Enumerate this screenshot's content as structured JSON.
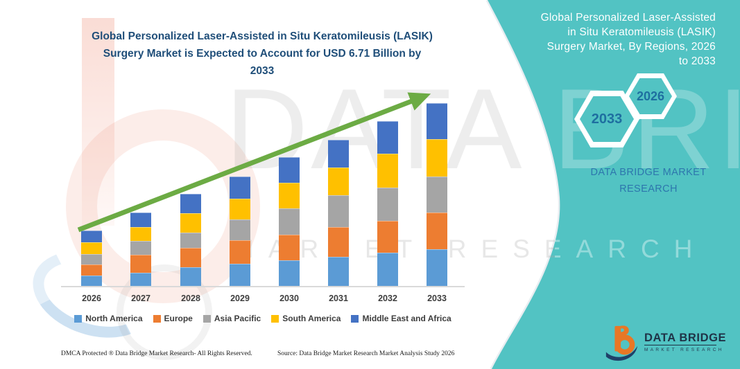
{
  "chart": {
    "title": "Global Personalized Laser-Assisted in Situ Keratomileusis (LASIK)\nSurgery Market is Expected to Account for USD 6.71 Billion by\n2033"
  },
  "chart_data": {
    "type": "bar",
    "stacked": true,
    "title": "Global Personalized Laser-Assisted in Situ Keratomileusis (LASIK) Surgery Market is Expected to Account for USD 6.71 Billion by 2033",
    "unit": "USD Billion",
    "categories": [
      "2026",
      "2027",
      "2028",
      "2029",
      "2030",
      "2031",
      "2032",
      "2033"
    ],
    "series": [
      {
        "name": "North America",
        "color": "#5B9BD5",
        "values": [
          0.41,
          0.51,
          0.71,
          0.83,
          0.96,
          1.09,
          1.24,
          1.37
        ]
      },
      {
        "name": "Europe",
        "color": "#ED7D31",
        "values": [
          0.41,
          0.65,
          0.7,
          0.86,
          0.94,
          1.09,
          1.17,
          1.34
        ]
      },
      {
        "name": "Asia Pacific",
        "color": "#A5A5A5",
        "values": [
          0.36,
          0.51,
          0.56,
          0.76,
          0.96,
          1.16,
          1.21,
          1.32
        ]
      },
      {
        "name": "South America",
        "color": "#FFC000",
        "values": [
          0.45,
          0.51,
          0.73,
          0.76,
          0.94,
          1.01,
          1.24,
          1.37
        ]
      },
      {
        "name": "Middle East and Africa",
        "color": "#4472C4",
        "values": [
          0.42,
          0.53,
          0.69,
          0.81,
          0.93,
          1.01,
          1.19,
          1.31
        ]
      }
    ],
    "totals": [
      2.05,
      2.71,
      3.39,
      4.02,
      4.73,
      5.36,
      6.05,
      6.71
    ],
    "ylim": [
      0,
      6.71
    ],
    "grid": false,
    "legend_position": "bottom",
    "trendline": {
      "type": "arrow",
      "color": "#6CAB44",
      "direction": "up"
    }
  },
  "sidebar": {
    "heading": "Global Personalized Laser-Assisted\nin Situ Keratomileusis (LASIK)\nSurgery Market, By Regions, 2026\nto 2033",
    "hexagons": [
      {
        "label": "2033"
      },
      {
        "label": "2026"
      }
    ],
    "brand_text": "DATA BRIDGE MARKET\nRESEARCH"
  },
  "logo": {
    "name": "DATA BRIDGE",
    "tagline": "MARKET RESEARCH"
  },
  "footer": {
    "left": "DMCA Protected ® Data Bridge Market Research-  All Rights Reserved.",
    "right": "Source: Data Bridge Market Research  Market Analysis Study 2026"
  },
  "watermarks": {
    "big_text": "DATA BRIDGE",
    "row_text": "MARKET RESEARCH"
  },
  "colors": {
    "panel_teal": "#52c3c3",
    "title_blue": "#1f4e79",
    "hexagon_label": "#1e6fa0",
    "brand_blue": "#2d76ad",
    "trend_green": "#6CAB44",
    "axis_gray": "#d9d9d9",
    "label_gray": "#3d3d3d"
  }
}
